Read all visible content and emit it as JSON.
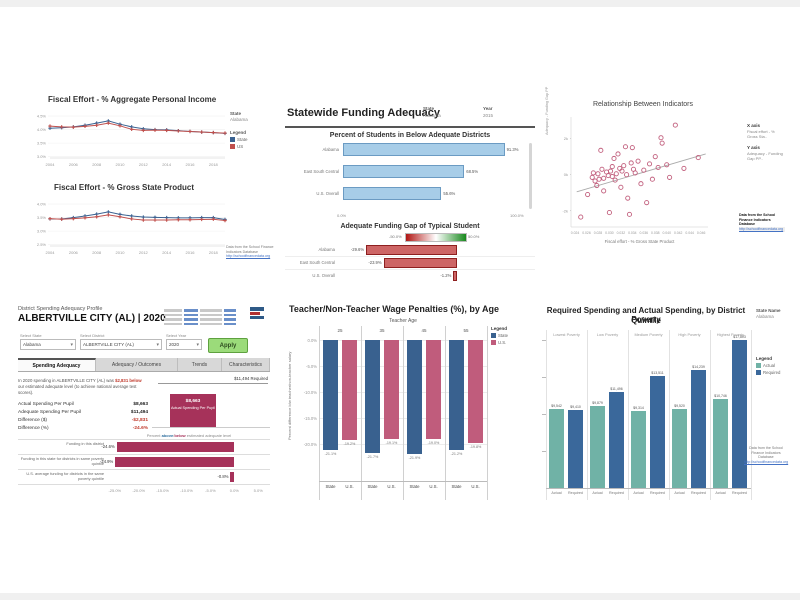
{
  "global": {
    "source_note": "Data from the School Finance Indicators Database",
    "source_link": "http://schoolfinancedata.org"
  },
  "fiscal_panel": {
    "title1": "Fiscal Effort - % Aggregate Personal Income",
    "title2": "Fiscal Effort - % Gross State Product",
    "state_label": "State",
    "state_value": "Alabama",
    "legend_label": "Legend",
    "legend_items": [
      {
        "label": "State",
        "color": "#3a6291"
      },
      {
        "label": "US",
        "color": "#c0504d"
      }
    ],
    "ylabel1": "% personal income",
    "ylabel2": "% GSP"
  },
  "adequacy_panel": {
    "title": "Statewide Funding Adequacy",
    "state_label": "State",
    "state_value": "Alabama",
    "year_label": "Year",
    "year_value": "2015",
    "subtitle1": "Percent of Students in Below Adequate Districts",
    "subtitle2": "Adequate Funding Gap of Typical Student",
    "gradient_min": "-50.0%",
    "gradient_max": "50.0%"
  },
  "scatter_panel": {
    "title": "Relationship Between Indicators",
    "x_axis_label": "X axis",
    "x_axis_value": "Fiscal effort - % Gross Sta..",
    "y_axis_label": "Y axis",
    "y_axis_value": "Adequacy - Funding Gap PP..",
    "ylabel_rotated": "Adequacy - Funding Gap PP"
  },
  "profile_panel": {
    "supertitle": "District Spending Adequacy Profile",
    "title": "ALBERTVILLE CITY (AL) | 2020",
    "controls": [
      {
        "label": "Select State",
        "value": "Alabama"
      },
      {
        "label": "Select District",
        "value": "ALBERTVILLE CITY (AL)"
      },
      {
        "label": "Select Year",
        "value": "2020"
      }
    ],
    "apply_label": "Apply",
    "tabs": [
      "Spending Adequacy",
      "Adequacy / Outcomes",
      "Trends",
      "Characteristics"
    ],
    "active_tab": 0,
    "para_p1": "In 2020 spending in ALBERTVILLE CITY (AL) was ",
    "para_red": "$2,831 below",
    "para_p2": " our estimated adequate level (to achieve national average test scores).",
    "kv": [
      {
        "label": "Actual Spending Per Pupil",
        "value": "$8,663",
        "red": false
      },
      {
        "label": "Adequate Spending Per Pupil",
        "value": "$11,494",
        "red": false
      },
      {
        "label": "Difference ($)",
        "value": "-$2,831",
        "red": true
      },
      {
        "label": "Difference (%)",
        "value": "-24.6%",
        "red": true
      }
    ],
    "required_label": "$11,494 Required",
    "box_value": "$8,663",
    "box_sub": "Actual Spending Per Pupil",
    "caption_prefix": "Percent ",
    "caption_above": "above",
    "caption_slash": "/",
    "caption_below": "below",
    "caption_suffix": " estimated adequate level"
  },
  "wage_panel": {
    "title": "Teacher/Non-Teacher Wage Penalties (%), by Age",
    "group_axis": "Teacher Age",
    "legend_label": "Legend",
    "legend_items": [
      {
        "label": "State",
        "color": "#39618f"
      },
      {
        "label": "U.S.",
        "color": "#c05c7c"
      }
    ],
    "ylabel": "Percent difference b/w teacher/non-teacher salary"
  },
  "poverty_panel": {
    "title_line1": "Required Spending and Actual Spending, by District Poverty",
    "title_line2": "Quintile",
    "state_name_label": "State Name",
    "state_name_value": "Alabama",
    "legend_label": "Legend",
    "legend_items": [
      {
        "label": "Actual",
        "color": "#70b2a6"
      },
      {
        "label": "Required",
        "color": "#3a689b"
      }
    ]
  },
  "chart_data": [
    {
      "id": "fiscal_income",
      "type": "line",
      "title": "Fiscal Effort - % Aggregate Personal Income",
      "x": [
        2004,
        2005,
        2006,
        2007,
        2008,
        2009,
        2010,
        2011,
        2012,
        2013,
        2014,
        2015,
        2016,
        2017,
        2018,
        2019
      ],
      "xticks": [
        "2004",
        "2006",
        "2008",
        "2010",
        "2012",
        "2014",
        "2016",
        "2018"
      ],
      "yticks": [
        {
          "label": "4.5%",
          "v": 4.5
        },
        {
          "label": "4.0%",
          "v": 4.0
        },
        {
          "label": "3.5%",
          "v": 3.5
        },
        {
          "label": "3.0%",
          "v": 3.0
        }
      ],
      "ylim": [
        2.95,
        4.65
      ],
      "series": [
        {
          "name": "State",
          "color": "#3a6291",
          "values": [
            4.05,
            4.07,
            4.1,
            4.16,
            4.24,
            4.32,
            4.2,
            4.1,
            4.03,
            4.0,
            3.99,
            3.96,
            3.93,
            3.91,
            3.89,
            3.86
          ]
        },
        {
          "name": "US",
          "color": "#c0504d",
          "values": [
            4.13,
            4.1,
            4.09,
            4.12,
            4.16,
            4.24,
            4.14,
            4.01,
            3.97,
            3.98,
            3.97,
            3.95,
            3.93,
            3.91,
            3.89,
            3.87
          ]
        }
      ]
    },
    {
      "id": "fiscal_gsp",
      "type": "line",
      "title": "Fiscal Effort - % Gross State Product",
      "x": [
        2004,
        2005,
        2006,
        2007,
        2008,
        2009,
        2010,
        2011,
        2012,
        2013,
        2014,
        2015,
        2016,
        2017,
        2018,
        2019
      ],
      "xticks": [
        "2004",
        "2006",
        "2008",
        "2010",
        "2012",
        "2014",
        "2016",
        "2018"
      ],
      "yticks": [
        {
          "label": "4.0%",
          "v": 4.0
        },
        {
          "label": "3.5%",
          "v": 3.5
        },
        {
          "label": "3.0%",
          "v": 3.0
        },
        {
          "label": "2.5%",
          "v": 2.5
        }
      ],
      "ylim": [
        2.45,
        4.15
      ],
      "series": [
        {
          "name": "State",
          "color": "#3a6291",
          "values": [
            3.45,
            3.45,
            3.5,
            3.56,
            3.63,
            3.71,
            3.62,
            3.56,
            3.52,
            3.51,
            3.5,
            3.49,
            3.49,
            3.5,
            3.5,
            3.43
          ]
        },
        {
          "name": "US",
          "color": "#c0504d",
          "values": [
            3.46,
            3.44,
            3.46,
            3.49,
            3.53,
            3.6,
            3.53,
            3.45,
            3.41,
            3.41,
            3.41,
            3.42,
            3.42,
            3.43,
            3.44,
            3.39
          ]
        }
      ]
    },
    {
      "id": "pct_below",
      "type": "bar",
      "orientation": "horizontal",
      "title": "Percent of Students in Below Adequate Districts",
      "categories": [
        "Alabama",
        "East South Central",
        "U.S. Overall"
      ],
      "values": [
        91.3,
        68.5,
        55.6
      ],
      "labels": [
        "91.3%",
        "68.5%",
        "55.6%"
      ],
      "xlim": [
        0,
        100
      ],
      "xticks": [
        {
          "label": "0.0%",
          "v": 0
        },
        {
          "label": "100.0%",
          "v": 100
        }
      ],
      "bar_fill": "#a7cde8",
      "bar_stroke": "#6b9bc3"
    },
    {
      "id": "funding_gap",
      "type": "bar",
      "orientation": "horizontal",
      "title": "Adequate Funding Gap of Typical Student",
      "categories": [
        "Alabama",
        "East South Central",
        "U.S. Overall"
      ],
      "values": [
        -29.6,
        -23.9,
        -1.2
      ],
      "labels": [
        "-29.6%",
        "-23.9%",
        "-1.2%"
      ],
      "legend_range": [
        "-50.0%",
        "50.0%"
      ],
      "bar_fill": "#cd6565",
      "bar_stroke": "#8e1f1f"
    },
    {
      "id": "indicators_scatter",
      "type": "scatter",
      "title": "Relationship Between Indicators",
      "xlabel": "Fiscal effort - % Gross State Product",
      "xticks": [
        "0.024",
        "0.026",
        "0.028",
        "0.030",
        "0.032",
        "0.034",
        "0.036",
        "0.038",
        "0.040",
        "0.042",
        "0.044",
        "0.046"
      ],
      "xlim": [
        0.0233,
        0.0472
      ],
      "yticks": [
        {
          "label": "2k",
          "v": 2
        },
        {
          "label": "0k",
          "v": 0
        },
        {
          "label": "-2k",
          "v": -2
        }
      ],
      "ylim": [
        -2.9,
        3.2
      ],
      "trend": [
        [
          0.0243,
          -0.95
        ],
        [
          0.0468,
          1.15
        ]
      ],
      "point_color": "#c2607e",
      "points": [
        [
          0.025,
          -2.35
        ],
        [
          0.0262,
          -1.1
        ],
        [
          0.027,
          -0.15
        ],
        [
          0.0272,
          0.1
        ],
        [
          0.0275,
          -0.35
        ],
        [
          0.0278,
          -0.6
        ],
        [
          0.028,
          0.05
        ],
        [
          0.0282,
          -0.25
        ],
        [
          0.0285,
          1.35
        ],
        [
          0.0287,
          0.3
        ],
        [
          0.029,
          -0.2
        ],
        [
          0.029,
          -0.9
        ],
        [
          0.0295,
          0.15
        ],
        [
          0.0298,
          -0.05
        ],
        [
          0.03,
          -2.1
        ],
        [
          0.0302,
          0.2
        ],
        [
          0.0305,
          -0.1
        ],
        [
          0.0305,
          0.45
        ],
        [
          0.0308,
          0.9
        ],
        [
          0.031,
          -0.3
        ],
        [
          0.0312,
          0.05
        ],
        [
          0.0315,
          1.15
        ],
        [
          0.0318,
          0.35
        ],
        [
          0.032,
          -0.7
        ],
        [
          0.0322,
          0.2
        ],
        [
          0.0325,
          0.5
        ],
        [
          0.0328,
          1.55
        ],
        [
          0.033,
          0.0
        ],
        [
          0.0332,
          -1.3
        ],
        [
          0.0335,
          -2.2
        ],
        [
          0.0338,
          0.65
        ],
        [
          0.034,
          1.5
        ],
        [
          0.0342,
          0.3
        ],
        [
          0.0345,
          0.1
        ],
        [
          0.035,
          0.75
        ],
        [
          0.0355,
          -0.5
        ],
        [
          0.036,
          0.25
        ],
        [
          0.0365,
          -1.55
        ],
        [
          0.037,
          0.6
        ],
        [
          0.0375,
          -0.25
        ],
        [
          0.038,
          1.0
        ],
        [
          0.0385,
          0.4
        ],
        [
          0.039,
          2.05
        ],
        [
          0.0392,
          1.75
        ],
        [
          0.04,
          0.55
        ],
        [
          0.0405,
          -0.15
        ],
        [
          0.0415,
          2.75
        ],
        [
          0.043,
          0.35
        ],
        [
          0.0455,
          0.95
        ]
      ]
    },
    {
      "id": "wage_penalties",
      "type": "grouped_bar",
      "title": "Teacher/Non-Teacher Wage Penalties (%), by Age",
      "group_axis": "Teacher Age",
      "groups": [
        "25",
        "35",
        "45",
        "55"
      ],
      "categories": [
        "State",
        "U.S."
      ],
      "yticks": [
        {
          "label": "0.0%",
          "v": 0
        },
        {
          "label": "-5.0%",
          "v": -5
        },
        {
          "label": "-10.0%",
          "v": -10
        },
        {
          "label": "-15.0%",
          "v": -15
        },
        {
          "label": "-20.0%",
          "v": -20
        }
      ],
      "ylabel": "Percent difference b/w teacher/non-teacher salary",
      "series": [
        {
          "name": "State",
          "color": "#39618f",
          "values": [
            -21.1,
            -21.7,
            -21.9,
            -21.2
          ],
          "labels": [
            "-21.1%",
            "-21.7%",
            "-21.9%",
            "-21.2%"
          ]
        },
        {
          "name": "U.S.",
          "color": "#c05c7c",
          "values": [
            -19.2,
            -19.1,
            -19.0,
            -19.8
          ],
          "labels": [
            "-19.2%",
            "-19.1%",
            "-19.0%",
            "-19.8%"
          ]
        }
      ]
    },
    {
      "id": "poverty_spending",
      "type": "grouped_bar",
      "title": "Required Spending and Actual Spending, by District Poverty Quintile",
      "groups": [
        "Lowest Poverty",
        "Low Poverty",
        "Medium Poverty",
        "High Poverty",
        "Highest Poverty"
      ],
      "categories": [
        "Actual",
        "Required"
      ],
      "ylim": [
        0,
        19000
      ],
      "series": [
        {
          "name": "Actual",
          "color": "#70b2a6",
          "values": [
            9542,
            9879,
            9314,
            9520,
            10746
          ],
          "labels": [
            "$9,542",
            "$9,879",
            "$9,314",
            "$9,520",
            "$10,746"
          ]
        },
        {
          "name": "Required",
          "color": "#3a689b",
          "values": [
            9410,
            11496,
            13511,
            14239,
            17803
          ],
          "labels": [
            "$9,410",
            "$11,496",
            "$13,511",
            "$14,239",
            "$17,803"
          ]
        }
      ]
    },
    {
      "id": "district_gap",
      "type": "bar",
      "orientation": "horizontal",
      "categories": [
        "Funding in this district",
        "Funding in this state for districts in same poverty quintile",
        "U.S. average funding for districts in the same poverty quintile"
      ],
      "values": [
        -24.6,
        -24.9,
        -0.8
      ],
      "labels": [
        "-24.6%",
        "-24.9%",
        "-0.8%"
      ],
      "xticks": [
        {
          "label": "-25.0%",
          "v": -25
        },
        {
          "label": "-20.0%",
          "v": -20
        },
        {
          "label": "-15.0%",
          "v": -15
        },
        {
          "label": "-10.0%",
          "v": -10
        },
        {
          "label": "-5.0%",
          "v": -5
        },
        {
          "label": "0.0%",
          "v": 0
        },
        {
          "label": "5.0%",
          "v": 5
        }
      ],
      "xlim": [
        -26,
        6
      ],
      "bar_fill": "#a6325a"
    }
  ]
}
